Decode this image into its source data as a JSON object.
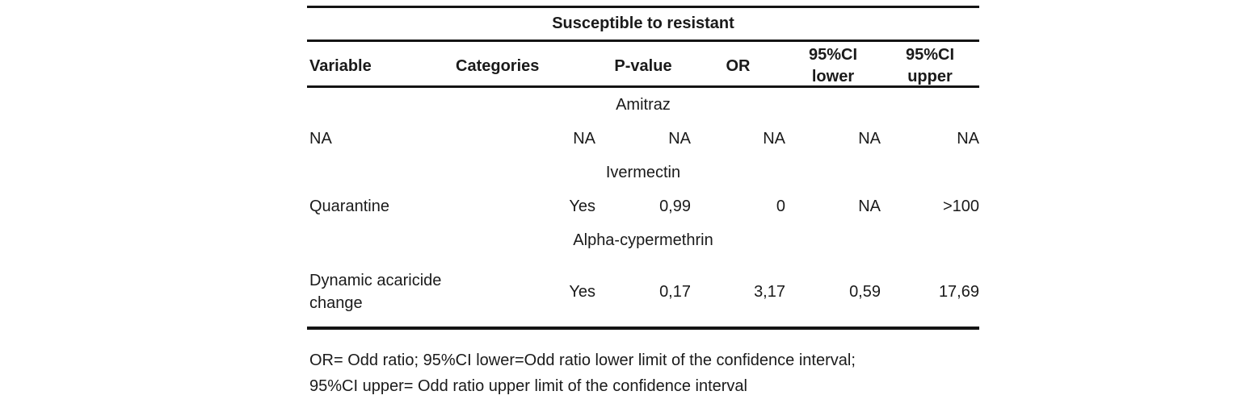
{
  "table": {
    "title": "Susceptible to resistant",
    "headers": [
      {
        "lines": [
          "Variable"
        ]
      },
      {
        "lines": [
          "Categories"
        ]
      },
      {
        "lines": [
          "P-value"
        ]
      },
      {
        "lines": [
          "OR"
        ]
      },
      {
        "lines": [
          "95%CI",
          "lower"
        ]
      },
      {
        "lines": [
          "95%CI",
          "upper"
        ]
      }
    ],
    "sections": [
      {
        "name": "Amitraz",
        "rows": [
          {
            "variable": "NA",
            "categories": "NA",
            "p_value": "NA",
            "or": "NA",
            "ci_lower": "NA",
            "ci_upper": "NA"
          }
        ]
      },
      {
        "name": "Ivermectin",
        "rows": [
          {
            "variable": "Quarantine",
            "categories": "Yes",
            "p_value": "0,99",
            "or": "0",
            "ci_lower": "NA",
            "ci_upper": ">100"
          }
        ]
      },
      {
        "name": "Alpha-cypermethrin",
        "rows": [
          {
            "variable": "Dynamic acaricide change",
            "categories": "Yes",
            "p_value": "0,17",
            "or": "3,17",
            "ci_lower": "0,59",
            "ci_upper": "17,69"
          }
        ]
      }
    ],
    "footnote": {
      "line1": "OR= Odd ratio; 95%CI lower=Odd ratio lower limit of the confidence interval;",
      "line2": "95%CI upper= Odd ratio upper limit of the confidence interval"
    }
  },
  "colors": {
    "background": "#ffffff",
    "text": "#1a1a1a",
    "rule": "#141414"
  }
}
